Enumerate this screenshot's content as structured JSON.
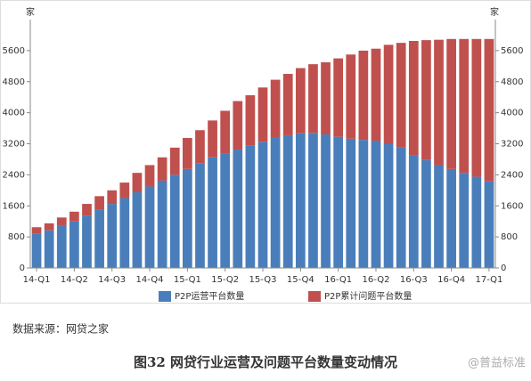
{
  "chart_data": {
    "type": "stacked_bar",
    "unit_left": "家",
    "unit_right": "家",
    "categories": [
      "14-Q1",
      null,
      null,
      "14-Q2",
      null,
      null,
      "14-Q3",
      null,
      null,
      "14-Q4",
      null,
      null,
      "15-Q1",
      null,
      null,
      "15-Q2",
      null,
      null,
      "15-Q3",
      null,
      null,
      "15-Q4",
      null,
      null,
      "16-Q1",
      null,
      null,
      "16-Q2",
      null,
      null,
      "16-Q3",
      null,
      null,
      "16-Q4",
      null,
      null,
      "17-Q1"
    ],
    "series": [
      {
        "name": "P2P运营平台数量",
        "color": "#4a7ebb",
        "values": [
          880,
          970,
          1080,
          1200,
          1350,
          1500,
          1650,
          1800,
          1950,
          2100,
          2250,
          2400,
          2550,
          2700,
          2850,
          2950,
          3050,
          3150,
          3250,
          3350,
          3420,
          3470,
          3480,
          3440,
          3380,
          3330,
          3300,
          3280,
          3200,
          3100,
          2900,
          2780,
          2650,
          2550,
          2450,
          2350,
          2230
        ]
      },
      {
        "name": "P2P累计问题平台数量",
        "color": "#c0504d",
        "values": [
          170,
          180,
          220,
          250,
          300,
          350,
          350,
          400,
          500,
          550,
          600,
          700,
          800,
          850,
          950,
          1100,
          1250,
          1300,
          1400,
          1500,
          1580,
          1680,
          1770,
          1860,
          2020,
          2170,
          2300,
          2370,
          2550,
          2700,
          2950,
          3090,
          3230,
          3350,
          3450,
          3550,
          3670
        ]
      }
    ],
    "ylim": [
      0,
      6400
    ],
    "yticks": [
      0,
      800,
      1600,
      2400,
      3200,
      4000,
      4800,
      5600
    ],
    "y2lim": [
      0,
      6400
    ],
    "y2ticks": [
      0,
      800,
      1600,
      2400,
      3200,
      4000,
      4800,
      5600
    ],
    "legend": "bottom",
    "source": "数据来源：网贷之家",
    "caption": "图32  网贷行业运营及问题平台数量变动情况",
    "watermark": "@普益标准"
  }
}
